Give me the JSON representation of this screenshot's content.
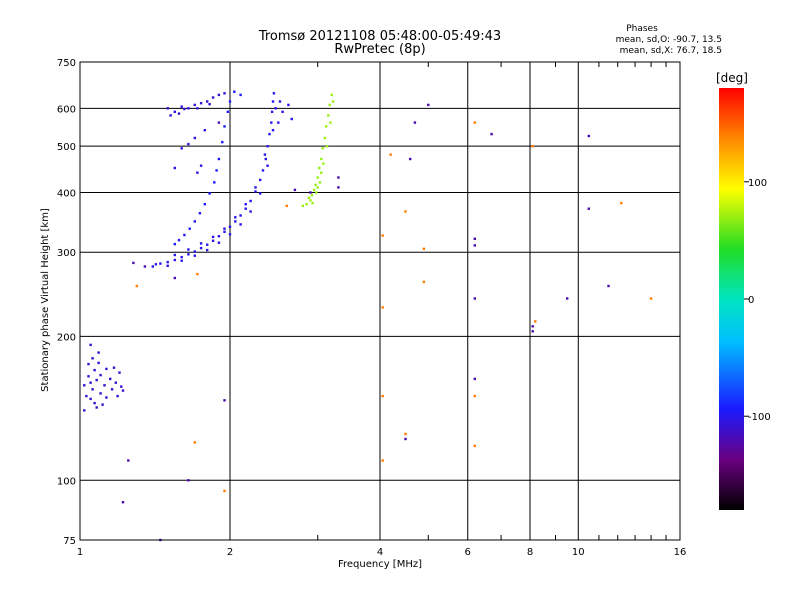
{
  "chart_data": {
    "type": "scatter",
    "title": "Tromsø 20121108 05:48:00-05:49:43",
    "subtitle": "RwPretec (8p)",
    "xlabel": "Frequency [MHz]",
    "ylabel": "Stationary phase Virtual Height [km]",
    "x_scale": "log",
    "y_scale": "log",
    "xlim": [
      1,
      16
    ],
    "ylim": [
      75,
      750
    ],
    "x_ticks": [
      1,
      2,
      4,
      6,
      8,
      10,
      16
    ],
    "y_ticks": [
      75,
      100,
      200,
      300,
      400,
      500,
      600,
      750
    ],
    "grid": true,
    "stats": {
      "heading": "Phases",
      "line1": "mean, sd,O: -90.7, 13.5",
      "line2": "mean, sd,X:  76.7, 18.5"
    },
    "colorbar": {
      "label": "[deg]",
      "range": [
        -180,
        180
      ],
      "ticks": [
        "100",
        "0",
        "-100"
      ],
      "tick_values": [
        100,
        0,
        -100
      ]
    },
    "series": [
      {
        "trace": "o-low",
        "phase": -110,
        "points": [
          [
            1.02,
            158
          ],
          [
            1.03,
            150
          ],
          [
            1.04,
            165
          ],
          [
            1.04,
            175
          ],
          [
            1.05,
            160
          ],
          [
            1.05,
            148
          ],
          [
            1.06,
            180
          ],
          [
            1.06,
            155
          ],
          [
            1.07,
            170
          ],
          [
            1.07,
            145
          ],
          [
            1.08,
            162
          ],
          [
            1.09,
            176
          ],
          [
            1.1,
            152
          ],
          [
            1.1,
            166
          ],
          [
            1.11,
            144
          ],
          [
            1.12,
            158
          ],
          [
            1.13,
            171
          ],
          [
            1.13,
            149
          ],
          [
            1.15,
            163
          ],
          [
            1.16,
            155
          ],
          [
            1.17,
            172
          ],
          [
            1.18,
            160
          ],
          [
            1.19,
            150
          ],
          [
            1.2,
            168
          ],
          [
            1.21,
            157
          ],
          [
            1.22,
            154
          ],
          [
            1.05,
            192
          ],
          [
            1.09,
            185
          ],
          [
            1.02,
            140
          ],
          [
            1.08,
            142
          ]
        ]
      },
      {
        "trace": "o-main",
        "phase": -100,
        "points": [
          [
            1.45,
            284
          ],
          [
            1.5,
            286
          ],
          [
            1.55,
            289
          ],
          [
            1.6,
            293
          ],
          [
            1.65,
            297
          ],
          [
            1.7,
            301
          ],
          [
            1.75,
            306
          ],
          [
            1.8,
            311
          ],
          [
            1.85,
            317
          ],
          [
            1.9,
            324
          ],
          [
            1.95,
            331
          ],
          [
            2,
            339
          ],
          [
            2.05,
            348
          ],
          [
            2.1,
            358
          ],
          [
            2.15,
            370
          ],
          [
            2.2,
            384
          ],
          [
            2.25,
            402
          ],
          [
            2.3,
            425
          ],
          [
            2.33,
            445
          ],
          [
            2.36,
            470
          ],
          [
            2.38,
            500
          ],
          [
            2.4,
            530
          ],
          [
            2.42,
            560
          ],
          [
            2.43,
            590
          ],
          [
            2.44,
            620
          ],
          [
            2.45,
            645
          ],
          [
            1.5,
            281
          ],
          [
            1.6,
            288
          ],
          [
            1.7,
            295
          ],
          [
            1.8,
            303
          ],
          [
            1.9,
            314
          ],
          [
            2,
            327
          ],
          [
            2.1,
            343
          ],
          [
            2.2,
            365
          ],
          [
            2.3,
            398
          ],
          [
            2.38,
            455
          ],
          [
            2.44,
            540
          ],
          [
            1.55,
            296
          ],
          [
            1.65,
            304
          ],
          [
            1.75,
            313
          ],
          [
            1.85,
            323
          ],
          [
            1.95,
            336
          ],
          [
            2.05,
            355
          ],
          [
            2.15,
            378
          ],
          [
            2.25,
            410
          ],
          [
            2.35,
            480
          ],
          [
            2.47,
            600
          ],
          [
            2.5,
            560
          ],
          [
            2.52,
            620
          ],
          [
            2.55,
            590
          ],
          [
            2.62,
            610
          ],
          [
            2.66,
            570
          ],
          [
            1.4,
            280
          ],
          [
            1.42,
            283
          ]
        ]
      },
      {
        "trace": "x-main",
        "phase": -95,
        "points": [
          [
            1.55,
            312
          ],
          [
            1.58,
            318
          ],
          [
            1.62,
            326
          ],
          [
            1.66,
            336
          ],
          [
            1.7,
            348
          ],
          [
            1.74,
            362
          ],
          [
            1.78,
            378
          ],
          [
            1.82,
            398
          ],
          [
            1.86,
            420
          ],
          [
            1.88,
            445
          ],
          [
            1.9,
            470
          ],
          [
            1.93,
            510
          ],
          [
            1.95,
            550
          ],
          [
            1.98,
            590
          ],
          [
            2,
            620
          ],
          [
            2.04,
            650
          ],
          [
            2.1,
            640
          ]
        ]
      },
      {
        "trace": "o-upper",
        "phase": -105,
        "points": [
          [
            1.5,
            600
          ],
          [
            1.55,
            590
          ],
          [
            1.6,
            605
          ],
          [
            1.65,
            600
          ],
          [
            1.7,
            610
          ],
          [
            1.75,
            615
          ],
          [
            1.8,
            620
          ],
          [
            1.85,
            632
          ],
          [
            1.9,
            640
          ],
          [
            1.95,
            645
          ],
          [
            1.52,
            580
          ],
          [
            1.58,
            585
          ],
          [
            1.62,
            598
          ],
          [
            1.72,
            600
          ],
          [
            1.82,
            612
          ],
          [
            1.7,
            520
          ],
          [
            1.72,
            440
          ],
          [
            1.75,
            455
          ],
          [
            1.6,
            495
          ],
          [
            1.65,
            505
          ],
          [
            1.78,
            540
          ],
          [
            1.55,
            450
          ]
        ]
      },
      {
        "trace": "x-upper",
        "phase": 70,
        "points": [
          [
            2.9,
            385
          ],
          [
            2.92,
            395
          ],
          [
            2.95,
            405
          ],
          [
            2.97,
            415
          ],
          [
            3,
            430
          ],
          [
            3.02,
            450
          ],
          [
            3.05,
            470
          ],
          [
            3.07,
            495
          ],
          [
            3.1,
            520
          ],
          [
            3.12,
            550
          ],
          [
            3.15,
            580
          ],
          [
            3.17,
            610
          ],
          [
            3.2,
            640
          ],
          [
            2.85,
            378
          ],
          [
            2.88,
            390
          ],
          [
            2.93,
            380
          ],
          [
            2.98,
            400
          ],
          [
            3.03,
            420
          ],
          [
            3.08,
            460
          ],
          [
            3.13,
            500
          ],
          [
            3.18,
            560
          ],
          [
            3.22,
            620
          ],
          [
            2.8,
            375
          ],
          [
            3,
            410
          ],
          [
            3.05,
            440
          ]
        ]
      },
      {
        "trace": "scattered",
        "phase": -120,
        "points": [
          [
            1.25,
            110
          ],
          [
            1.45,
            75
          ],
          [
            1.65,
            100
          ],
          [
            1.95,
            147
          ],
          [
            1.35,
            280
          ],
          [
            1.22,
            90
          ],
          [
            1.55,
            265
          ],
          [
            1.9,
            560
          ],
          [
            1.28,
            285
          ],
          [
            6.2,
            320
          ],
          [
            6.2,
            310
          ],
          [
            6.2,
            240
          ],
          [
            6.2,
            163
          ],
          [
            5,
            610
          ],
          [
            4.7,
            560
          ],
          [
            4.6,
            470
          ],
          [
            4.5,
            122
          ],
          [
            6.7,
            530
          ],
          [
            8.1,
            210
          ],
          [
            8.1,
            205
          ],
          [
            9.5,
            240
          ],
          [
            10.5,
            525
          ],
          [
            10.5,
            370
          ],
          [
            11.5,
            255
          ],
          [
            3.3,
            430
          ],
          [
            3.3,
            410
          ],
          [
            2.7,
            405
          ],
          [
            2.9,
            400
          ]
        ]
      },
      {
        "trace": "scattered-warm",
        "phase": 140,
        "points": [
          [
            4.05,
            325
          ],
          [
            4.2,
            480
          ],
          [
            4.5,
            365
          ],
          [
            4.9,
            305
          ],
          [
            4.9,
            260
          ],
          [
            4.05,
            230
          ],
          [
            4.05,
            150
          ],
          [
            4.05,
            110
          ],
          [
            4.5,
            125
          ],
          [
            6.2,
            560
          ],
          [
            6.2,
            150
          ],
          [
            6.2,
            118
          ],
          [
            8.2,
            215
          ],
          [
            8.1,
            500
          ],
          [
            12.2,
            380
          ],
          [
            14,
            240
          ],
          [
            1.3,
            255
          ],
          [
            1.7,
            120
          ],
          [
            1.72,
            270
          ],
          [
            1.95,
            95
          ],
          [
            2.6,
            375
          ]
        ]
      }
    ]
  }
}
